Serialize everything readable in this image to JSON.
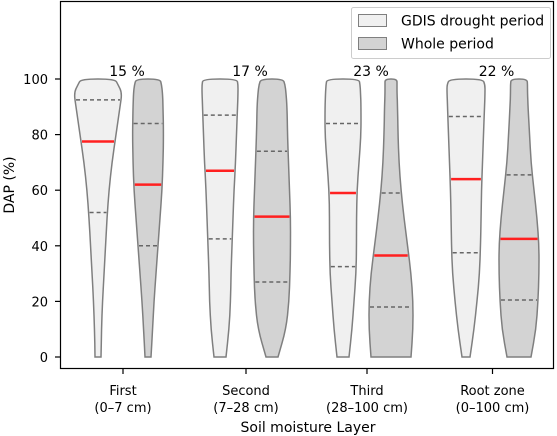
{
  "chart_data": {
    "type": "violin",
    "xlabel": "Soil moisture Layer",
    "ylabel": "DAP (%)",
    "ylim": [
      -5,
      128
    ],
    "yticks": [
      0,
      20,
      40,
      60,
      80,
      100
    ],
    "grid": false,
    "legend_position": "top-right",
    "categories": [
      {
        "name": "First",
        "depth": "(0–7 cm)"
      },
      {
        "name": "Second",
        "depth": "(7–28 cm)"
      },
      {
        "name": "Third",
        "depth": "(28–100 cm)"
      },
      {
        "name": "Root zone",
        "depth": "(0–100 cm)"
      }
    ],
    "percent_labels": [
      "15 %",
      "17 %",
      "23 %",
      "22 %"
    ],
    "series": [
      {
        "name": "GDIS drought period",
        "fill": "#f0f0f0",
        "median": [
          77.5,
          67,
          59,
          64
        ],
        "q1": [
          52,
          42.5,
          32.5,
          37.5
        ],
        "q3": [
          92.5,
          87,
          84,
          86.5
        ]
      },
      {
        "name": "Whole period",
        "fill": "#d3d3d3",
        "median": [
          62,
          50.5,
          36.5,
          42.5
        ],
        "q1": [
          40,
          27,
          18,
          20.5
        ],
        "q3": [
          84,
          74,
          59,
          65.5
        ]
      }
    ],
    "colors": {
      "median_line": "#ff2020",
      "outline": "#7f7f7f",
      "quartile_line": "#666666",
      "axis": "#000000"
    }
  }
}
